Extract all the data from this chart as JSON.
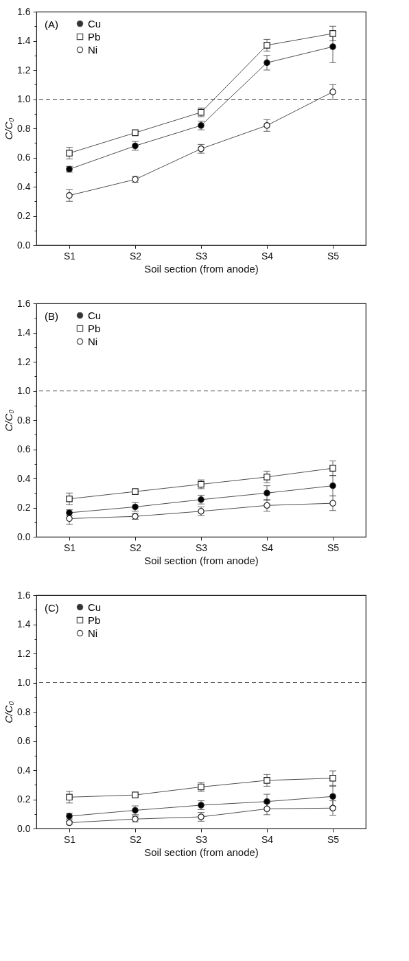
{
  "chart_data": [
    {
      "type": "line",
      "annotations": [
        "(A)"
      ],
      "xlabel": "Soil section (from anode)",
      "ylabel": "C/C₀",
      "categories": [
        "S1",
        "S2",
        "S3",
        "S4",
        "S5"
      ],
      "ylim": [
        0,
        1.6
      ],
      "yticks": [
        {
          "value": 0,
          "label": "0.0"
        },
        {
          "value": 0.1,
          "label": null
        },
        0.2,
        {
          "value": 0.3,
          "label": null
        },
        0.4,
        {
          "value": 0.5,
          "label": null
        },
        0.6,
        {
          "value": 0.7,
          "label": null
        },
        0.8,
        {
          "value": 0.9,
          "label": null
        },
        {
          "value": 1.0,
          "label": "1.0"
        },
        {
          "value": 1.1,
          "label": null
        },
        1.2,
        {
          "value": 1.3,
          "label": null
        },
        1.4,
        {
          "value": 1.5,
          "label": null
        },
        1.6
      ],
      "legend": "top left",
      "line_style": "solid",
      "ref_lines": [
        {
          "axis": "y",
          "value": 1.0,
          "line_style": "dashed",
          "color": "#333333"
        }
      ],
      "series": [
        {
          "name": "Cu",
          "color": "#000000",
          "marker": "circle",
          "values": [
            0.52,
            0.68,
            0.82,
            1.25,
            1.36
          ],
          "errors": [
            0.02,
            0.03,
            0.03,
            0.05,
            0.11
          ]
        },
        {
          "name": "Pb",
          "color": "#ffffff",
          "marker": "square",
          "values": [
            0.63,
            0.77,
            0.91,
            1.37,
            1.45
          ],
          "errors": [
            0.04,
            0.01,
            0.03,
            0.04,
            0.05
          ]
        },
        {
          "name": "Ni",
          "color": "#ffffff",
          "marker": "circle",
          "values": [
            0.34,
            0.45,
            0.66,
            0.82,
            1.05
          ],
          "errors": [
            0.04,
            0.02,
            0.03,
            0.04,
            0.05
          ]
        }
      ]
    },
    {
      "type": "line",
      "annotations": [
        "(B)"
      ],
      "xlabel": "Soil section (from anode)",
      "ylabel": "C/C₀",
      "categories": [
        "S1",
        "S2",
        "S3",
        "S4",
        "S5"
      ],
      "ylim": [
        0,
        1.6
      ],
      "yticks": [
        {
          "value": 0,
          "label": "0.0"
        },
        {
          "value": 0.1,
          "label": null
        },
        0.2,
        {
          "value": 0.3,
          "label": null
        },
        0.4,
        {
          "value": 0.5,
          "label": null
        },
        0.6,
        {
          "value": 0.7,
          "label": null
        },
        0.8,
        {
          "value": 0.9,
          "label": null
        },
        {
          "value": 1.0,
          "label": "1.0"
        },
        {
          "value": 1.1,
          "label": null
        },
        1.2,
        {
          "value": 1.3,
          "label": null
        },
        1.4,
        {
          "value": 1.5,
          "label": null
        },
        1.6
      ],
      "legend": "top left",
      "line_style": "solid",
      "ref_lines": [
        {
          "axis": "y",
          "value": 1.0,
          "line_style": "dashed",
          "color": "#333333"
        }
      ],
      "series": [
        {
          "name": "Cu",
          "color": "#000000",
          "marker": "circle",
          "values": [
            0.165,
            0.205,
            0.255,
            0.3,
            0.35
          ],
          "errors": [
            0.02,
            0.03,
            0.03,
            0.05,
            0.07
          ]
        },
        {
          "name": "Pb",
          "color": "#ffffff",
          "marker": "square",
          "values": [
            0.26,
            0.31,
            0.36,
            0.41,
            0.47
          ],
          "errors": [
            0.04,
            0.01,
            0.03,
            0.04,
            0.05
          ]
        },
        {
          "name": "Ni",
          "color": "#ffffff",
          "marker": "circle",
          "values": [
            0.125,
            0.14,
            0.175,
            0.215,
            0.23
          ],
          "errors": [
            0.04,
            0.02,
            0.03,
            0.04,
            0.05
          ]
        }
      ]
    },
    {
      "type": "line",
      "annotations": [
        "(C)"
      ],
      "xlabel": "Soil section (from anode)",
      "ylabel": "C/C₀",
      "categories": [
        "S1",
        "S2",
        "S3",
        "S4",
        "S5"
      ],
      "ylim": [
        0,
        1.6
      ],
      "yticks": [
        {
          "value": 0,
          "label": "0.0"
        },
        {
          "value": 0.1,
          "label": null
        },
        0.2,
        {
          "value": 0.3,
          "label": null
        },
        0.4,
        {
          "value": 0.5,
          "label": null
        },
        0.6,
        {
          "value": 0.7,
          "label": null
        },
        0.8,
        {
          "value": 0.9,
          "label": null
        },
        {
          "value": 1.0,
          "label": "1.0"
        },
        {
          "value": 1.1,
          "label": null
        },
        1.2,
        {
          "value": 1.3,
          "label": null
        },
        1.4,
        {
          "value": 1.5,
          "label": null
        },
        1.6
      ],
      "legend": "top left",
      "line_style": "solid",
      "ref_lines": [
        {
          "axis": "y",
          "value": 1.0,
          "line_style": "dashed",
          "color": "#333333"
        }
      ],
      "series": [
        {
          "name": "Cu",
          "color": "#000000",
          "marker": "circle",
          "values": [
            0.085,
            0.125,
            0.16,
            0.185,
            0.22
          ],
          "errors": [
            0.02,
            0.03,
            0.03,
            0.05,
            0.07
          ]
        },
        {
          "name": "Pb",
          "color": "#ffffff",
          "marker": "square",
          "values": [
            0.215,
            0.23,
            0.285,
            0.33,
            0.345
          ],
          "errors": [
            0.04,
            0.01,
            0.03,
            0.04,
            0.05
          ]
        },
        {
          "name": "Ni",
          "color": "#ffffff",
          "marker": "circle",
          "values": [
            0.04,
            0.065,
            0.08,
            0.135,
            0.14
          ],
          "errors": [
            0.01,
            0.02,
            0.03,
            0.04,
            0.05
          ]
        }
      ]
    }
  ]
}
